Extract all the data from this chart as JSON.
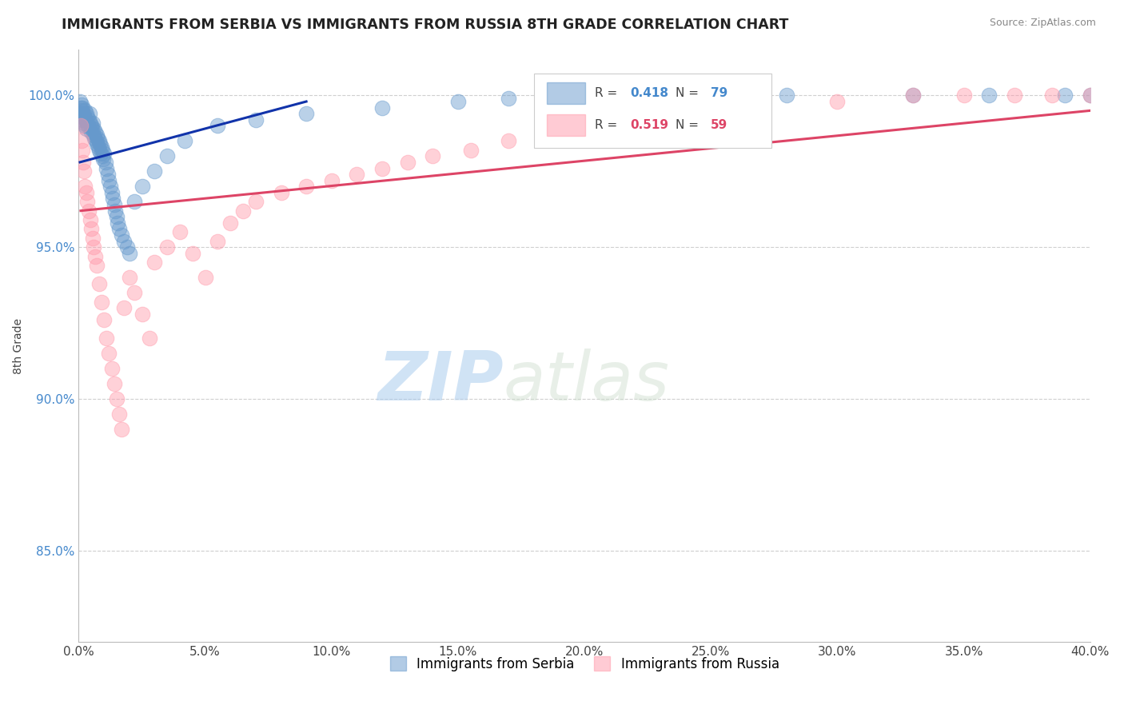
{
  "title": "IMMIGRANTS FROM SERBIA VS IMMIGRANTS FROM RUSSIA 8TH GRADE CORRELATION CHART",
  "source_text": "Source: ZipAtlas.com",
  "ylabel": "8th Grade",
  "xlim": [
    0.0,
    40.0
  ],
  "ylim": [
    82.0,
    101.5
  ],
  "yticks": [
    85.0,
    90.0,
    95.0,
    100.0
  ],
  "ytick_labels": [
    "85.0%",
    "90.0%",
    "95.0%",
    "100.0%"
  ],
  "xticks": [
    0.0,
    5.0,
    10.0,
    15.0,
    20.0,
    25.0,
    30.0,
    35.0,
    40.0
  ],
  "xtick_labels": [
    "0.0%",
    "5.0%",
    "10.0%",
    "15.0%",
    "20.0%",
    "25.0%",
    "30.0%",
    "35.0%",
    "40.0%"
  ],
  "serbia_color": "#6699CC",
  "russia_color": "#FF99AA",
  "serbia_R": 0.418,
  "serbia_N": 79,
  "russia_R": 0.519,
  "russia_N": 59,
  "serbia_line_color": "#1133AA",
  "russia_line_color": "#DD4466",
  "legend_serbia": "Immigrants from Serbia",
  "legend_russia": "Immigrants from Russia",
  "watermark_zip": "ZIP",
  "watermark_atlas": "atlas",
  "background_color": "#ffffff",
  "serbia_x": [
    0.05,
    0.08,
    0.1,
    0.1,
    0.12,
    0.13,
    0.15,
    0.15,
    0.18,
    0.2,
    0.22,
    0.25,
    0.25,
    0.28,
    0.3,
    0.3,
    0.32,
    0.35,
    0.38,
    0.4,
    0.42,
    0.45,
    0.48,
    0.5,
    0.52,
    0.55,
    0.58,
    0.6,
    0.62,
    0.65,
    0.68,
    0.7,
    0.72,
    0.75,
    0.78,
    0.8,
    0.82,
    0.85,
    0.88,
    0.9,
    0.92,
    0.95,
    0.98,
    1.0,
    1.05,
    1.1,
    1.15,
    1.2,
    1.25,
    1.3,
    1.35,
    1.4,
    1.45,
    1.5,
    1.55,
    1.6,
    1.7,
    1.8,
    1.9,
    2.0,
    2.2,
    2.5,
    3.0,
    3.5,
    4.2,
    5.5,
    7.0,
    9.0,
    12.0,
    15.0,
    17.0,
    20.0,
    22.0,
    25.0,
    28.0,
    33.0,
    36.0,
    39.0,
    40.0
  ],
  "serbia_y": [
    99.8,
    99.6,
    99.7,
    99.4,
    99.5,
    99.3,
    99.6,
    99.2,
    99.4,
    99.1,
    99.3,
    99.5,
    99.0,
    99.2,
    99.4,
    98.9,
    99.1,
    99.3,
    99.0,
    99.2,
    99.4,
    99.1,
    98.8,
    99.0,
    98.9,
    99.1,
    98.7,
    98.9,
    98.6,
    98.8,
    98.5,
    98.7,
    98.4,
    98.6,
    98.3,
    98.5,
    98.2,
    98.4,
    98.1,
    98.3,
    98.0,
    98.2,
    97.9,
    98.1,
    97.8,
    97.6,
    97.4,
    97.2,
    97.0,
    96.8,
    96.6,
    96.4,
    96.2,
    96.0,
    95.8,
    95.6,
    95.4,
    95.2,
    95.0,
    94.8,
    96.5,
    97.0,
    97.5,
    98.0,
    98.5,
    99.0,
    99.2,
    99.4,
    99.6,
    99.8,
    99.9,
    100.0,
    100.0,
    100.0,
    100.0,
    100.0,
    100.0,
    100.0,
    100.0
  ],
  "russia_x": [
    0.08,
    0.12,
    0.15,
    0.18,
    0.2,
    0.25,
    0.3,
    0.35,
    0.4,
    0.45,
    0.5,
    0.55,
    0.6,
    0.65,
    0.7,
    0.8,
    0.9,
    1.0,
    1.1,
    1.2,
    1.3,
    1.4,
    1.5,
    1.6,
    1.7,
    1.8,
    2.0,
    2.2,
    2.5,
    2.8,
    3.0,
    3.5,
    4.0,
    4.5,
    5.0,
    5.5,
    6.0,
    6.5,
    7.0,
    8.0,
    9.0,
    10.0,
    11.0,
    12.0,
    13.0,
    14.0,
    15.5,
    17.0,
    19.0,
    21.0,
    23.0,
    25.0,
    27.0,
    30.0,
    33.0,
    35.0,
    37.0,
    38.5,
    40.0
  ],
  "russia_y": [
    99.0,
    98.5,
    98.2,
    97.8,
    97.5,
    97.0,
    96.8,
    96.5,
    96.2,
    95.9,
    95.6,
    95.3,
    95.0,
    94.7,
    94.4,
    93.8,
    93.2,
    92.6,
    92.0,
    91.5,
    91.0,
    90.5,
    90.0,
    89.5,
    89.0,
    93.0,
    94.0,
    93.5,
    92.8,
    92.0,
    94.5,
    95.0,
    95.5,
    94.8,
    94.0,
    95.2,
    95.8,
    96.2,
    96.5,
    96.8,
    97.0,
    97.2,
    97.4,
    97.6,
    97.8,
    98.0,
    98.2,
    98.5,
    98.8,
    99.0,
    99.2,
    99.4,
    99.6,
    99.8,
    100.0,
    100.0,
    100.0,
    100.0,
    100.0
  ],
  "serbia_trend_x": [
    0.05,
    9.0
  ],
  "serbia_trend_y": [
    97.8,
    99.8
  ],
  "russia_trend_x": [
    0.08,
    40.0
  ],
  "russia_trend_y": [
    96.2,
    99.5
  ]
}
